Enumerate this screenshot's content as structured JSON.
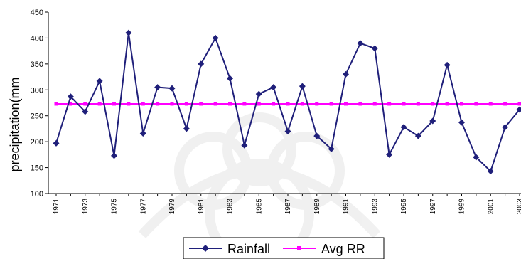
{
  "chart_data": {
    "type": "line",
    "ylabel": "precipitation(mm",
    "xlabel": "",
    "ylim": [
      100,
      450
    ],
    "yticks": [
      100,
      150,
      200,
      250,
      300,
      350,
      400,
      450
    ],
    "x": [
      1971,
      1972,
      1973,
      1974,
      1975,
      1976,
      1977,
      1978,
      1979,
      1980,
      1981,
      1982,
      1983,
      1984,
      1985,
      1986,
      1987,
      1988,
      1989,
      1990,
      1991,
      1992,
      1993,
      1994,
      1995,
      1996,
      1997,
      1998,
      1999,
      2000,
      2001,
      2002,
      2003
    ],
    "xtick_labels": [
      "1971",
      "1973",
      "1975",
      "1977",
      "1979",
      "1981",
      "1983",
      "1985",
      "1987",
      "1989",
      "1991",
      "1993",
      "1995",
      "1997",
      "1999",
      "2001",
      "2003"
    ],
    "series": [
      {
        "name": "Rainfall",
        "color": "#1f1f7a",
        "marker": "diamond",
        "values": [
          197,
          287,
          258,
          317,
          173,
          410,
          216,
          305,
          303,
          225,
          350,
          400,
          322,
          193,
          292,
          305,
          220,
          307,
          211,
          186,
          330,
          390,
          380,
          175,
          228,
          211,
          240,
          348,
          237,
          170,
          143,
          228,
          262
        ]
      },
      {
        "name": "Avg RR",
        "color": "#ff00ff",
        "marker": "square",
        "values": [
          273,
          273,
          273,
          273,
          273,
          273,
          273,
          273,
          273,
          273,
          273,
          273,
          273,
          273,
          273,
          273,
          273,
          273,
          273,
          273,
          273,
          273,
          273,
          273,
          273,
          273,
          273,
          273,
          273,
          273,
          273,
          273,
          273
        ]
      }
    ],
    "grid": false,
    "legend": "bottom-center"
  }
}
